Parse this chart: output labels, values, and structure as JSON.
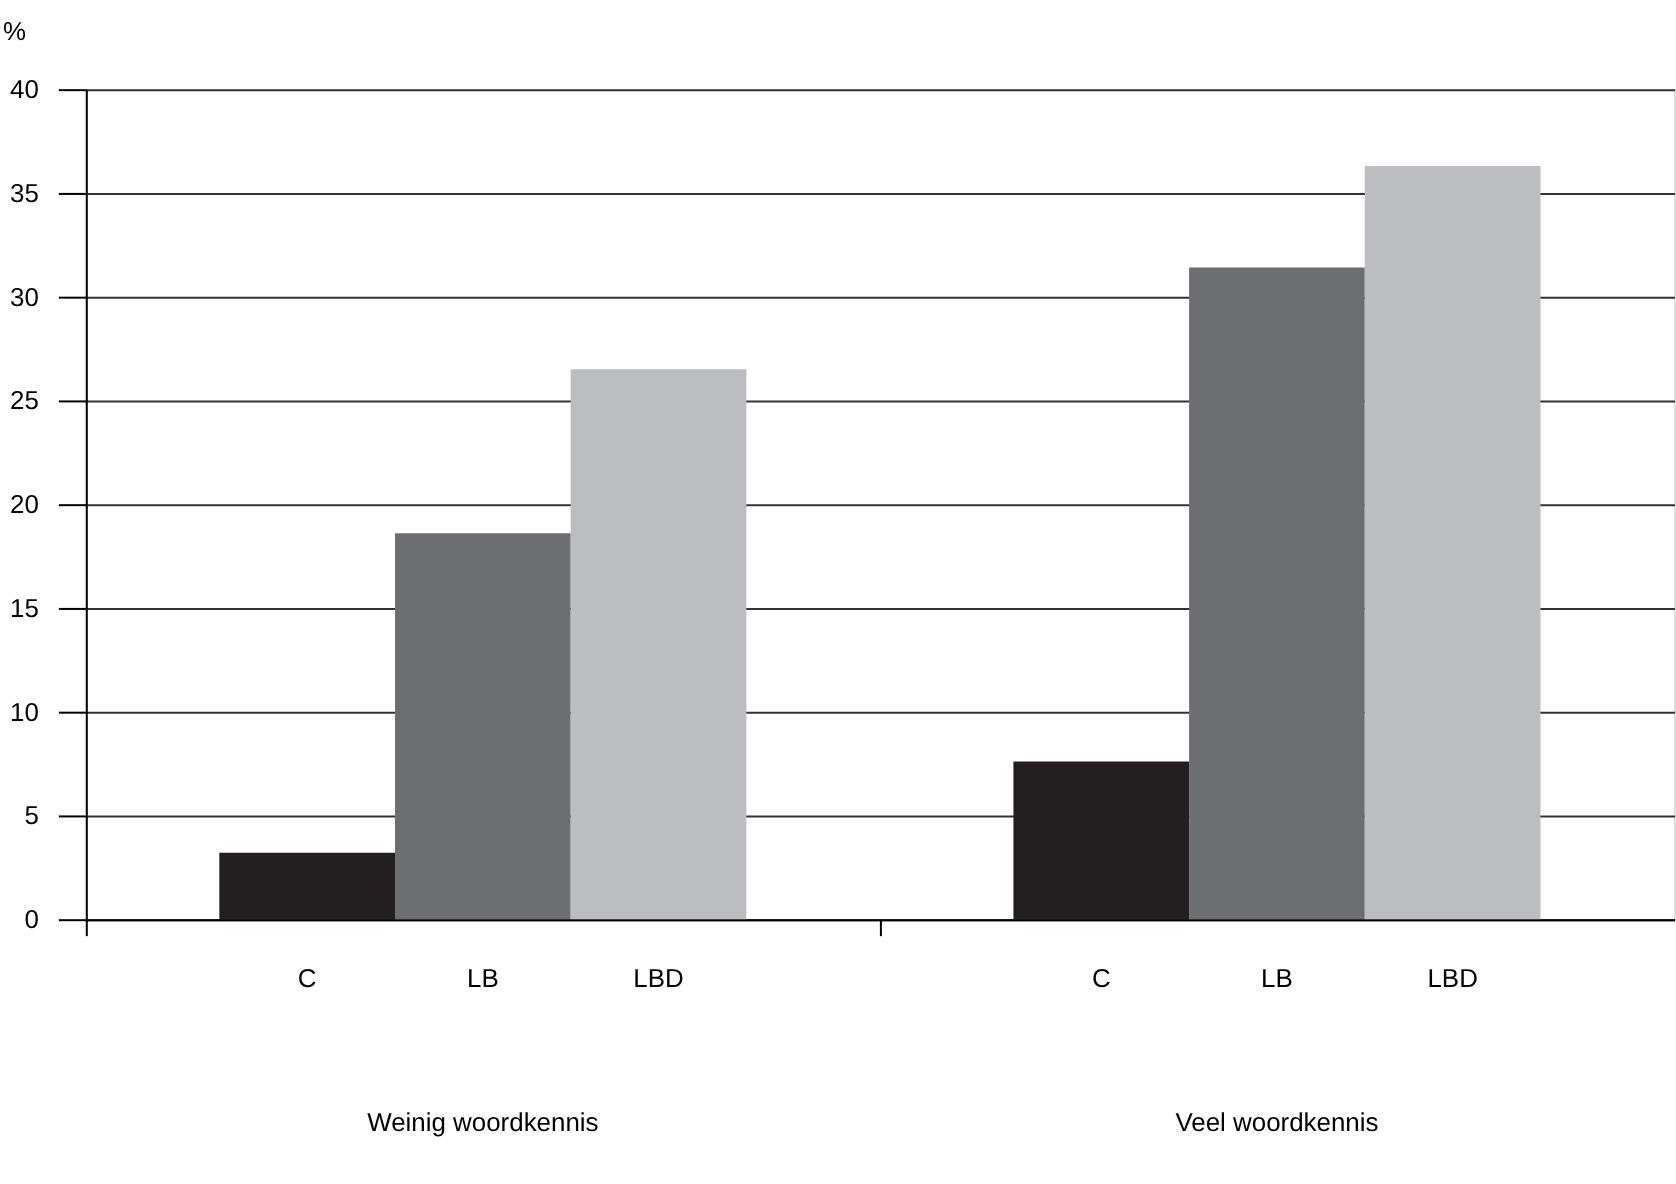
{
  "chart_data": {
    "type": "bar",
    "ylabel": "%",
    "categories": [
      "Weinig woordkennis",
      "Veel woordkennis"
    ],
    "series": [
      {
        "name": "C",
        "color": "#231f20",
        "values": [
          3.2,
          7.6
        ]
      },
      {
        "name": "LB",
        "color": "#6d6e71",
        "values": [
          18.6,
          31.4
        ]
      },
      {
        "name": "LBD",
        "color": "#bcbdc0",
        "values": [
          26.5,
          36.3
        ]
      }
    ],
    "ylim": [
      0,
      40
    ],
    "yticks": [
      0,
      5,
      10,
      15,
      20,
      25,
      30,
      35,
      40
    ],
    "grid": "y",
    "legend": false
  }
}
